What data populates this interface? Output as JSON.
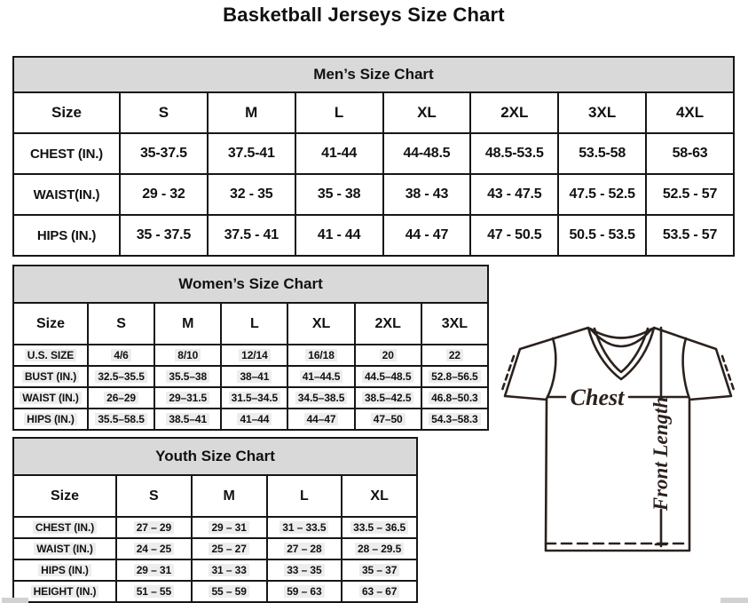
{
  "page_title": "Basketball Jerseys Size Chart",
  "tables": {
    "men": {
      "title": "Men’s Size Chart",
      "highlight": false,
      "columns": [
        "Size",
        "S",
        "M",
        "L",
        "XL",
        "2XL",
        "3XL",
        "4XL"
      ],
      "rows": [
        {
          "label": "CHEST (IN.)",
          "values": [
            "35-37.5",
            "37.5-41",
            "41-44",
            "44-48.5",
            "48.5-53.5",
            "53.5-58",
            "58-63"
          ]
        },
        {
          "label": "WAIST(IN.)",
          "values": [
            "29 - 32",
            "32 - 35",
            "35 - 38",
            "38 - 43",
            "43 - 47.5",
            "47.5 - 52.5",
            "52.5 - 57"
          ]
        },
        {
          "label": "HIPS (IN.)",
          "values": [
            "35 - 37.5",
            "37.5 - 41",
            "41 - 44",
            "44 - 47",
            "47 - 50.5",
            "50.5 - 53.5",
            "53.5 - 57"
          ]
        }
      ]
    },
    "women": {
      "title": "Women’s Size Chart",
      "highlight": true,
      "columns": [
        "Size",
        "S",
        "M",
        "L",
        "XL",
        "2XL",
        "3XL"
      ],
      "rows": [
        {
          "label": "U.S. SIZE",
          "values": [
            "4/6",
            "8/10",
            "12/14",
            "16/18",
            "20",
            "22"
          ]
        },
        {
          "label": "BUST (IN.)",
          "values": [
            "32.5–35.5",
            "35.5–38",
            "38–41",
            "41–44.5",
            "44.5–48.5",
            "52.8–56.5"
          ]
        },
        {
          "label": "WAIST (IN.)",
          "values": [
            "26–29",
            "29–31.5",
            "31.5–34.5",
            "34.5–38.5",
            "38.5–42.5",
            "46.8–50.3"
          ]
        },
        {
          "label": "HIPS (IN.)",
          "values": [
            "35.5–58.5",
            "38.5–41",
            "41–44",
            "44–47",
            "47–50",
            "54.3–58.3"
          ]
        }
      ]
    },
    "youth": {
      "title": "Youth Size Chart",
      "highlight": true,
      "columns": [
        "Size",
        "S",
        "M",
        "L",
        "XL"
      ],
      "rows": [
        {
          "label": "CHEST (IN.)",
          "values": [
            "27 – 29",
            "29 – 31",
            "31 – 33.5",
            "33.5 – 36.5"
          ]
        },
        {
          "label": "WAIST (IN.)",
          "values": [
            "24 – 25",
            "25 – 27",
            "27 – 28",
            "28 – 29.5"
          ]
        },
        {
          "label": "HIPS (IN.)",
          "values": [
            "29 – 31",
            "31 – 33",
            "33 – 35",
            "35 – 37"
          ]
        },
        {
          "label": "HEIGHT (IN.)",
          "values": [
            "51 – 55",
            "55 – 59",
            "59 – 63",
            "63 – 67"
          ]
        }
      ]
    }
  },
  "diagram": {
    "chest_label": "Chest",
    "front_length_label": "Front Length"
  },
  "colors": {
    "table_header_bg": "#d9d9d9",
    "border": "#161616",
    "jersey_line": "#2b211d"
  }
}
